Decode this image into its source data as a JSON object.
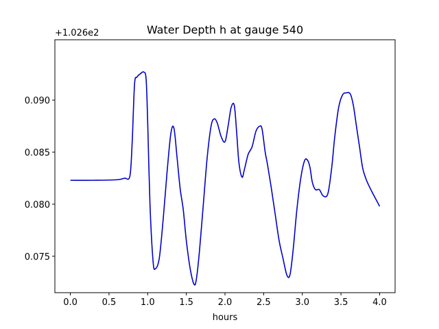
{
  "chart_data": {
    "type": "line",
    "title": "Water Depth h at gauge 540",
    "xlabel": "hours",
    "ylabel": "",
    "y_offset_label": "+1.026e2",
    "y_offset": 102.6,
    "xlim": [
      -0.2,
      4.2
    ],
    "ylim": [
      0.0715,
      0.0958
    ],
    "xticks": [
      0.0,
      0.5,
      1.0,
      1.5,
      2.0,
      2.5,
      3.0,
      3.5,
      4.0
    ],
    "xtick_labels": [
      "0.0",
      "0.5",
      "1.0",
      "1.5",
      "2.0",
      "2.5",
      "3.0",
      "3.5",
      "4.0"
    ],
    "yticks": [
      0.075,
      0.08,
      0.085,
      0.09
    ],
    "ytick_labels": [
      "0.075",
      "0.080",
      "0.085",
      "0.090"
    ],
    "grid": false,
    "series": [
      {
        "color": "#0000cc",
        "x": [
          0.0,
          0.3,
          0.6,
          0.7,
          0.77,
          0.8,
          0.83,
          0.86,
          0.9,
          0.95,
          0.98,
          1.0,
          1.03,
          1.07,
          1.1,
          1.15,
          1.2,
          1.25,
          1.3,
          1.34,
          1.38,
          1.42,
          1.46,
          1.5,
          1.55,
          1.6,
          1.63,
          1.67,
          1.72,
          1.77,
          1.82,
          1.86,
          1.9,
          1.95,
          2.0,
          2.04,
          2.08,
          2.12,
          2.15,
          2.18,
          2.22,
          2.25,
          2.3,
          2.35,
          2.4,
          2.45,
          2.48,
          2.52,
          2.55,
          2.6,
          2.65,
          2.7,
          2.75,
          2.8,
          2.84,
          2.88,
          2.93,
          2.98,
          3.03,
          3.07,
          3.1,
          3.13,
          3.17,
          3.22,
          3.27,
          3.33,
          3.38,
          3.42,
          3.47,
          3.52,
          3.57,
          3.62,
          3.66,
          3.7,
          3.74,
          3.78,
          3.82,
          3.86,
          3.9,
          3.95,
          4.0
        ],
        "y": [
          0.0823,
          0.0823,
          0.08235,
          0.0825,
          0.0827,
          0.086,
          0.0915,
          0.0922,
          0.0925,
          0.0927,
          0.092,
          0.088,
          0.08,
          0.0745,
          0.0738,
          0.0748,
          0.0785,
          0.083,
          0.0868,
          0.0873,
          0.0845,
          0.0815,
          0.0795,
          0.0765,
          0.0738,
          0.0723,
          0.0728,
          0.0755,
          0.08,
          0.0845,
          0.0875,
          0.0882,
          0.0878,
          0.0865,
          0.086,
          0.0875,
          0.0893,
          0.0895,
          0.087,
          0.084,
          0.0826,
          0.0833,
          0.0848,
          0.0855,
          0.087,
          0.0875,
          0.0872,
          0.085,
          0.0838,
          0.0815,
          0.079,
          0.0765,
          0.0748,
          0.0732,
          0.0732,
          0.0755,
          0.0795,
          0.0825,
          0.0842,
          0.0842,
          0.0835,
          0.0821,
          0.0814,
          0.0814,
          0.0808,
          0.081,
          0.0835,
          0.0865,
          0.0893,
          0.0905,
          0.0907,
          0.0906,
          0.0895,
          0.0875,
          0.0855,
          0.0835,
          0.0825,
          0.0818,
          0.0812,
          0.0805,
          0.0798
        ]
      }
    ]
  }
}
